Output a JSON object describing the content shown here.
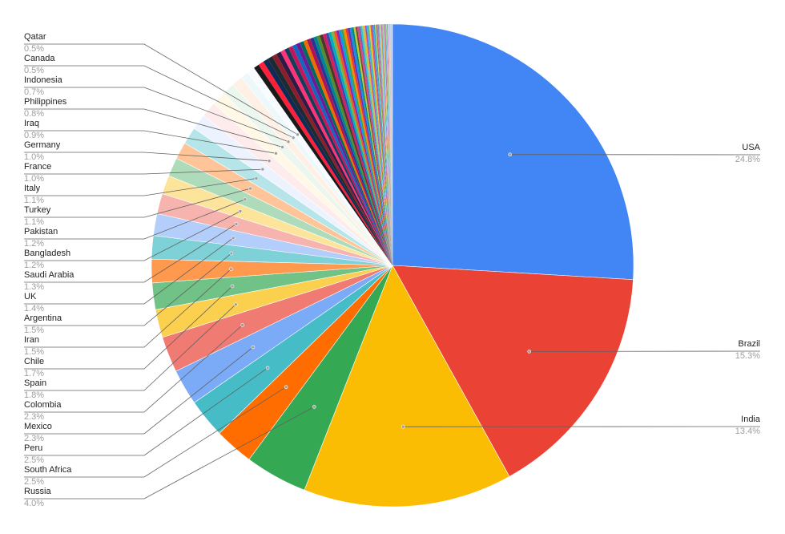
{
  "chart_data": {
    "type": "pie",
    "legend": "none",
    "start_angle_deg": 0,
    "direction": "clockwise",
    "labeled": [
      {
        "name": "USA",
        "pct_label": "24.8%",
        "value": 24.8,
        "color": "#4285f4",
        "side": "right"
      },
      {
        "name": "Brazil",
        "pct_label": "15.3%",
        "value": 15.3,
        "color": "#ea4335",
        "side": "right"
      },
      {
        "name": "India",
        "pct_label": "13.4%",
        "value": 13.4,
        "color": "#fbbc04",
        "side": "right"
      },
      {
        "name": "Russia",
        "pct_label": "4.0%",
        "value": 4.0,
        "color": "#34a853",
        "side": "left"
      },
      {
        "name": "South Africa",
        "pct_label": "2.5%",
        "value": 2.5,
        "color": "#ff6d01",
        "side": "left"
      },
      {
        "name": "Peru",
        "pct_label": "2.5%",
        "value": 2.5,
        "color": "#46bdc6",
        "side": "left"
      },
      {
        "name": "Mexico",
        "pct_label": "2.3%",
        "value": 2.3,
        "color": "#7baaf7",
        "side": "left"
      },
      {
        "name": "Colombia",
        "pct_label": "2.3%",
        "value": 2.3,
        "color": "#f07b72",
        "side": "left"
      },
      {
        "name": "Spain",
        "pct_label": "1.8%",
        "value": 1.8,
        "color": "#fcd04f",
        "side": "left"
      },
      {
        "name": "Chile",
        "pct_label": "1.7%",
        "value": 1.7,
        "color": "#71c287",
        "side": "left"
      },
      {
        "name": "Iran",
        "pct_label": "1.5%",
        "value": 1.5,
        "color": "#ff994d",
        "side": "left"
      },
      {
        "name": "Argentina",
        "pct_label": "1.5%",
        "value": 1.5,
        "color": "#7ed1d7",
        "side": "left"
      },
      {
        "name": "UK",
        "pct_label": "1.4%",
        "value": 1.4,
        "color": "#b3cefb",
        "side": "left"
      },
      {
        "name": "Saudi Arabia",
        "pct_label": "1.3%",
        "value": 1.3,
        "color": "#f7b4ae",
        "side": "left"
      },
      {
        "name": "Bangladesh",
        "pct_label": "1.2%",
        "value": 1.2,
        "color": "#fde49b",
        "side": "left"
      },
      {
        "name": "Pakistan",
        "pct_label": "1.2%",
        "value": 1.2,
        "color": "#aedcba",
        "side": "left"
      },
      {
        "name": "Turkey",
        "pct_label": "1.1%",
        "value": 1.1,
        "color": "#ffc599",
        "side": "left"
      },
      {
        "name": "Italy",
        "pct_label": "1.1%",
        "value": 1.1,
        "color": "#b5e5e8",
        "side": "left"
      },
      {
        "name": "France",
        "pct_label": "1.0%",
        "value": 1.0,
        "color": "#ecf3fe",
        "side": "left"
      },
      {
        "name": "Germany",
        "pct_label": "1.0%",
        "value": 1.0,
        "color": "#fdeceb",
        "side": "left"
      },
      {
        "name": "Iraq",
        "pct_label": "0.9%",
        "value": 0.9,
        "color": "#fff8e6",
        "side": "left"
      },
      {
        "name": "Philippines",
        "pct_label": "0.8%",
        "value": 0.8,
        "color": "#ebf6ee",
        "side": "left"
      },
      {
        "name": "Indonesia",
        "pct_label": "0.7%",
        "value": 0.7,
        "color": "#fff0e6",
        "side": "left"
      },
      {
        "name": "Canada",
        "pct_label": "0.5%",
        "value": 0.5,
        "color": "#ecf8f9",
        "side": "left"
      },
      {
        "name": "Qatar",
        "pct_label": "0.5%",
        "value": 0.5,
        "color": "#f8fbff",
        "side": "left"
      }
    ],
    "unlabeled_values": [
      0.35,
      0.35,
      0.34,
      0.32,
      0.3,
      0.3,
      0.28,
      0.28,
      0.27,
      0.26,
      0.25,
      0.24,
      0.24,
      0.23,
      0.22,
      0.21,
      0.2,
      0.2,
      0.19,
      0.18,
      0.18,
      0.17,
      0.16,
      0.16,
      0.15,
      0.15,
      0.14,
      0.14,
      0.13,
      0.13,
      0.12,
      0.12,
      0.11,
      0.11,
      0.1,
      0.1,
      0.1,
      0.09,
      0.09,
      0.09,
      0.08,
      0.08,
      0.08,
      0.07,
      0.07,
      0.07,
      0.06,
      0.06,
      0.06,
      0.06,
      0.05,
      0.05,
      0.05,
      0.05,
      0.05,
      0.04,
      0.04,
      0.04,
      0.04,
      0.04,
      0.03,
      0.03,
      0.03,
      0.03,
      0.03,
      0.03,
      0.02,
      0.02,
      0.02,
      0.02,
      0.02,
      0.02,
      0.02,
      0.02,
      0.01,
      0.01,
      0.01,
      0.01,
      0.01,
      0.01,
      0.01,
      0.01
    ],
    "unlabeled_colors": [
      "#1a1a1a",
      "#ff1f3a",
      "#0d2b54",
      "#1f2a30",
      "#8c1d2a",
      "#2e1a47",
      "#ff3377",
      "#143d59",
      "#c2185b",
      "#1565c0",
      "#6a1b9a",
      "#00695c",
      "#ef6c00",
      "#ad1457",
      "#283593",
      "#00838f",
      "#558b2f",
      "#4e342e",
      "#d81b60",
      "#3949ab",
      "#00acc1",
      "#7cb342",
      "#f4511e",
      "#8e24aa",
      "#039be5",
      "#43a047",
      "#fb8c00",
      "#e53935",
      "#5e35b1",
      "#1e88e5",
      "#00897b",
      "#c0ca33",
      "#6d4c41",
      "#ec407a",
      "#5c6bc0",
      "#26c6da",
      "#9ccc65",
      "#ffa726",
      "#ab47bc",
      "#29b6f6",
      "#66bb6a",
      "#ffca28",
      "#ef5350",
      "#7e57c2",
      "#42a5f5",
      "#26a69a",
      "#d4e157",
      "#8d6e63",
      "#f06292",
      "#7986cb",
      "#4dd0e1",
      "#aed581",
      "#ffb74d",
      "#ba68c8",
      "#4fc3f7",
      "#81c784",
      "#ffd54f",
      "#e57373",
      "#9575cd",
      "#64b5f6",
      "#4db6ac",
      "#dce775",
      "#a1887f",
      "#f48fb1",
      "#9fa8da",
      "#80deea",
      "#c5e1a5",
      "#ffcc80",
      "#ce93d8",
      "#81d4fa",
      "#a5d6a7",
      "#ffe082",
      "#ef9a9a",
      "#b39ddb",
      "#90caf9",
      "#80cbc4",
      "#e6ee9c",
      "#bcaaa4",
      "#f8bbd0",
      "#c5cae9",
      "#b2ebf2",
      "#dcedc8"
    ]
  }
}
